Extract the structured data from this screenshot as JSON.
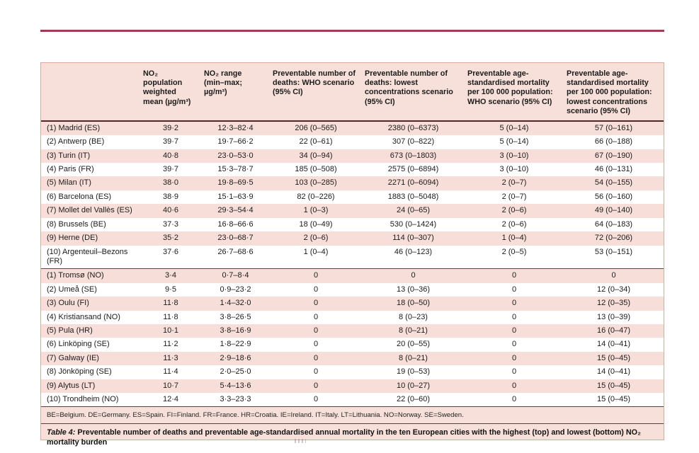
{
  "page": {
    "top_rule_color": "#a23b53",
    "panel_bg": "#f8e0da",
    "stripe_pink": "#f8ded8",
    "stripe_white": "#ffffff"
  },
  "table": {
    "columns": [
      "",
      "NO₂ population weighted mean (µg/m³)",
      "NO₂ range (min–max; µg/m³)",
      "Preventable number of deaths: WHO scenario (95% CI)",
      "Preventable number of deaths: lowest concentrations scenario (95% CI)",
      "Preventable age-standardised mortality per 100 000 population: WHO scenario (95% CI)",
      "Preventable age-standardised mortality per 100 000 population: lowest concentrations scenario (95% CI)"
    ],
    "cell_keys": [
      "city",
      "mean",
      "range",
      "deaths_who",
      "deaths_lowest",
      "mortality_who",
      "mortality_lowest"
    ],
    "sections": [
      {
        "name": "highest-burden-cities",
        "rows": [
          {
            "city": "(1) Madrid (ES)",
            "mean": "39·2",
            "range": "12·3–82·4",
            "deaths_who": "206 (0–565)",
            "deaths_lowest": "2380 (0–6373)",
            "mortality_who": "5 (0–14)",
            "mortality_lowest": "57 (0–161)"
          },
          {
            "city": "(2) Antwerp (BE)",
            "mean": "39·7",
            "range": "19·7–66·2",
            "deaths_who": "22 (0–61)",
            "deaths_lowest": "307 (0–822)",
            "mortality_who": "5 (0–14)",
            "mortality_lowest": "66 (0–188)"
          },
          {
            "city": "(3) Turin (IT)",
            "mean": "40·8",
            "range": "23·0–53·0",
            "deaths_who": "34 (0–94)",
            "deaths_lowest": "673 (0–1803)",
            "mortality_who": "3 (0–10)",
            "mortality_lowest": "67 (0–190)"
          },
          {
            "city": "(4) Paris (FR)",
            "mean": "39·7",
            "range": "15·3–78·7",
            "deaths_who": "185 (0–508)",
            "deaths_lowest": "2575 (0–6894)",
            "mortality_who": "3 (0–10)",
            "mortality_lowest": "46 (0–131)"
          },
          {
            "city": "(5) Milan (IT)",
            "mean": "38·0",
            "range": "19·8–69·5",
            "deaths_who": "103 (0–285)",
            "deaths_lowest": "2271 (0–6094)",
            "mortality_who": "2 (0–7)",
            "mortality_lowest": "54 (0–155)"
          },
          {
            "city": "(6) Barcelona (ES)",
            "mean": "38·9",
            "range": "15·1–63·9",
            "deaths_who": "82 (0–226)",
            "deaths_lowest": "1883 (0–5048)",
            "mortality_who": "2 (0–7)",
            "mortality_lowest": "56 (0–160)"
          },
          {
            "city": "(7) Mollet del Vallès (ES)",
            "mean": "40·6",
            "range": "29·3–54·4",
            "deaths_who": "1 (0–3)",
            "deaths_lowest": "24 (0–65)",
            "mortality_who": "2 (0–6)",
            "mortality_lowest": "49 (0–140)"
          },
          {
            "city": "(8) Brussels (BE)",
            "mean": "37·3",
            "range": "16·8–66·6",
            "deaths_who": "18 (0–49)",
            "deaths_lowest": "530 (0–1424)",
            "mortality_who": "2 (0–6)",
            "mortality_lowest": "64 (0–183)"
          },
          {
            "city": "(9) Herne (DE)",
            "mean": "35·2",
            "range": "23·0–68·7",
            "deaths_who": "2 (0–6)",
            "deaths_lowest": "114 (0–307)",
            "mortality_who": "1 (0–4)",
            "mortality_lowest": "72 (0–206)"
          },
          {
            "city": "(10) Argenteuil–Bezons (FR)",
            "mean": "37·6",
            "range": "26·7–68·6",
            "deaths_who": "1 (0–4)",
            "deaths_lowest": "46 (0–123)",
            "mortality_who": "2 (0–5)",
            "mortality_lowest": "53 (0–151)"
          }
        ]
      },
      {
        "name": "lowest-burden-cities",
        "rows": [
          {
            "city": "(1) Tromsø (NO)",
            "mean": "3·4",
            "range": "0·7–8·4",
            "deaths_who": "0",
            "deaths_lowest": "0",
            "mortality_who": "0",
            "mortality_lowest": "0"
          },
          {
            "city": "(2) Umeå (SE)",
            "mean": "9·5",
            "range": "0·9–23·2",
            "deaths_who": "0",
            "deaths_lowest": "13 (0–36)",
            "mortality_who": "0",
            "mortality_lowest": "12 (0–34)"
          },
          {
            "city": "(3) Oulu (FI)",
            "mean": "11·8",
            "range": "1·4–32·0",
            "deaths_who": "0",
            "deaths_lowest": "18 (0–50)",
            "mortality_who": "0",
            "mortality_lowest": "12 (0–35)"
          },
          {
            "city": "(4) Kristiansand (NO)",
            "mean": "11·8",
            "range": "3·8–26·5",
            "deaths_who": "0",
            "deaths_lowest": "8 (0–23)",
            "mortality_who": "0",
            "mortality_lowest": "13 (0–39)"
          },
          {
            "city": "(5) Pula (HR)",
            "mean": "10·1",
            "range": "3·8–16·9",
            "deaths_who": "0",
            "deaths_lowest": "8 (0–21)",
            "mortality_who": "0",
            "mortality_lowest": "16 (0–47)"
          },
          {
            "city": "(6) Linköping (SE)",
            "mean": "11·2",
            "range": "1·8–22·9",
            "deaths_who": "0",
            "deaths_lowest": "20 (0–55)",
            "mortality_who": "0",
            "mortality_lowest": "14 (0–41)"
          },
          {
            "city": "(7) Galway (IE)",
            "mean": "11·3",
            "range": "2·9–18·6",
            "deaths_who": "0",
            "deaths_lowest": "8 (0–21)",
            "mortality_who": "0",
            "mortality_lowest": "15 (0–45)"
          },
          {
            "city": "(8) Jönköping (SE)",
            "mean": "11·4",
            "range": "2·0–25·0",
            "deaths_who": "0",
            "deaths_lowest": "19 (0–53)",
            "mortality_who": "0",
            "mortality_lowest": "14 (0–41)"
          },
          {
            "city": "(9) Alytus (LT)",
            "mean": "10·7",
            "range": "5·4–13·6",
            "deaths_who": "0",
            "deaths_lowest": "10 (0–27)",
            "mortality_who": "0",
            "mortality_lowest": "15 (0–45)"
          },
          {
            "city": "(10) Trondheim (NO)",
            "mean": "12·4",
            "range": "3·3–23·3",
            "deaths_who": "0",
            "deaths_lowest": "22 (0–60)",
            "mortality_who": "0",
            "mortality_lowest": "15 (0–45)"
          }
        ]
      }
    ],
    "footnote": "BE=Belgium. DE=Germany. ES=Spain. FI=Finland. FR=France. HR=Croatia. IE=Ireland. IT=Italy. LT=Lithuania. NO=Norway. SE=Sweden.",
    "caption_label": "Table 4:",
    "caption_text": "Preventable number of deaths and preventable age-standardised annual mortality in the ten European cities with the highest (top) and lowest (bottom) NO₂ mortality burden"
  }
}
